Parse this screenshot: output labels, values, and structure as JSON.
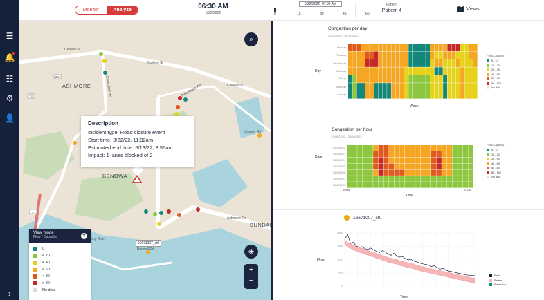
{
  "topbar": {
    "mode_monitor": "Monitor",
    "mode_analyze": "Analyze",
    "time": "06:30 AM",
    "date": "6/22/2022",
    "timeline_label": "6/22/2022, 07:00 AM",
    "timeline_ticks": [
      "0",
      "15",
      "30",
      "45",
      "60"
    ],
    "pattern_label": "Pattern",
    "pattern_value": "Pattern 4",
    "views_label": "Views"
  },
  "sidebar": {
    "items": [
      "list-icon",
      "bell-icon",
      "queue-icon",
      "settings-icon",
      "user-icon"
    ],
    "expand_icon": "chevron-right-icon"
  },
  "map": {
    "labels": [
      "Colbew St",
      "Colbew St",
      "Colbew St",
      "Cavendish Rd",
      "Pine Ridge Rd",
      "Sawyer Rd",
      "ASHMORE",
      "BENOWA",
      "Ashmore Rd",
      "BUNDAL",
      "Bundall Rd",
      "Nerang River"
    ],
    "route_badges": [
      "24",
      "24",
      "4"
    ],
    "popup": {
      "title": "Description",
      "lines": [
        "Incident type: Road closure event",
        "Start time: 3/22/22, 11:32am",
        "Estimated end time: 5/13/22, 8:56am",
        "Impact: 1 lanes blocked of 2"
      ]
    },
    "sensor_label": "16671007_st0",
    "legend": {
      "title": "View mode",
      "subtitle": "Flow / Capacity",
      "items": [
        {
          "label": "0",
          "color": "#12877a"
        },
        {
          "label": "< 20",
          "color": "#8dc63f"
        },
        {
          "label": "< 40",
          "color": "#e6d21d"
        },
        {
          "label": "< 60",
          "color": "#f5a623"
        },
        {
          "label": "< 80",
          "color": "#e05a1d"
        },
        {
          "label": "> 80",
          "color": "#c62828"
        },
        {
          "label": "No data",
          "color": "#dcdcdc"
        }
      ]
    }
  },
  "flow_legend": {
    "title": "Flow/Capacity",
    "items": [
      {
        "label": "0 - 10",
        "color": "#12877a"
      },
      {
        "label": "10 - 20",
        "color": "#8dc63f"
      },
      {
        "label": "20 - 40",
        "color": "#e6d21d"
      },
      {
        "label": "40 - 60",
        "color": "#f5a623"
      },
      {
        "label": "60 - 80",
        "color": "#e05a1d"
      },
      {
        "label": "80 - 100",
        "color": "#c62828"
      },
      {
        "label": "No data",
        "color": "#e3e3e3"
      }
    ]
  },
  "panels": {
    "day": {
      "title": "Congestion per day",
      "subtitle": "01/01/2022 - 01/12/2022",
      "ylabel": "Day",
      "xlabel": "Week",
      "rows": [
        "Monday",
        "Tuesday",
        "Wednesday",
        "Thursday",
        "Friday",
        "Saturday",
        "Sunday"
      ]
    },
    "hour": {
      "title": "Congestion per hour",
      "subtitle": "22/08/2022 - 28/08/2022",
      "ylabel": "Date",
      "xlabel": "Time",
      "rows": [
        "2022/08/22",
        "2022/08/23",
        "2022/08/24",
        "2022/08/25",
        "2022/08/26",
        "2022/08/27",
        "2022/08/28"
      ],
      "ticks": [
        "00:00",
        "24:00"
      ]
    },
    "sensor": {
      "title": "16671007_st0",
      "ylabel": "Flow",
      "xlabel": "Time",
      "yticks": [
        "4000",
        "3000",
        "2000",
        "1000",
        "0"
      ],
      "legend": [
        {
          "label": "Real",
          "color": "#1b2540"
        },
        {
          "label": "Pattern",
          "color": "#f4b6b6"
        },
        {
          "label": "Prediction",
          "color": "#12877a"
        }
      ]
    }
  },
  "chart_data": [
    {
      "type": "heatmap",
      "title": "Congestion per day",
      "xlabel": "Week",
      "ylabel": "Day",
      "rows": [
        "Monday",
        "Tuesday",
        "Wednesday",
        "Thursday",
        "Friday",
        "Saturday",
        "Sunday"
      ],
      "columns": 30,
      "scale": [
        "#12877a",
        "#8dc63f",
        "#e6d21d",
        "#f5a623",
        "#e05a1d",
        "#c62828",
        "#e3e3e3"
      ],
      "values": [
        [
          4,
          4,
          4,
          3,
          3,
          3,
          3,
          3,
          3,
          3,
          3,
          3,
          3,
          3,
          0,
          0,
          0,
          0,
          0,
          3,
          3,
          3,
          3,
          5,
          5,
          5,
          2,
          2,
          3,
          3
        ],
        [
          3,
          3,
          3,
          3,
          4,
          4,
          5,
          3,
          3,
          3,
          3,
          3,
          3,
          3,
          0,
          0,
          0,
          0,
          0,
          3,
          2,
          2,
          3,
          3,
          3,
          2,
          2,
          2,
          3,
          3
        ],
        [
          3,
          3,
          3,
          3,
          5,
          5,
          5,
          3,
          3,
          3,
          3,
          3,
          3,
          3,
          0,
          0,
          0,
          0,
          0,
          2,
          3,
          3,
          2,
          2,
          2,
          3,
          2,
          2,
          2,
          3
        ],
        [
          3,
          3,
          3,
          3,
          3,
          3,
          3,
          3,
          3,
          3,
          3,
          3,
          3,
          2,
          2,
          2,
          2,
          2,
          2,
          2,
          0,
          0,
          2,
          2,
          2,
          2,
          3,
          2,
          2,
          2
        ],
        [
          0,
          1,
          3,
          3,
          3,
          3,
          3,
          3,
          3,
          3,
          3,
          3,
          3,
          2,
          1,
          1,
          1,
          1,
          1,
          2,
          2,
          2,
          0,
          2,
          2,
          2,
          3,
          2,
          2,
          2
        ],
        [
          0,
          1,
          0,
          0,
          3,
          3,
          0,
          0,
          0,
          0,
          3,
          3,
          3,
          2,
          1,
          1,
          1,
          1,
          1,
          2,
          2,
          2,
          0,
          2,
          2,
          2,
          3,
          2,
          2,
          2
        ],
        [
          0,
          1,
          0,
          0,
          3,
          3,
          0,
          0,
          0,
          0,
          3,
          3,
          3,
          2,
          1,
          1,
          1,
          1,
          1,
          2,
          2,
          2,
          0,
          2,
          2,
          2,
          3,
          2,
          2,
          2
        ]
      ]
    },
    {
      "type": "heatmap",
      "title": "Congestion per hour",
      "xlabel": "Time",
      "ylabel": "Date",
      "rows": [
        "2022/08/22",
        "2022/08/23",
        "2022/08/24",
        "2022/08/25",
        "2022/08/26",
        "2022/08/27",
        "2022/08/28"
      ],
      "columns": 24,
      "x_ticks": [
        "00:00",
        "24:00"
      ],
      "scale": [
        "#12877a",
        "#8dc63f",
        "#e6d21d",
        "#f5a623",
        "#e05a1d",
        "#c62828",
        "#e3e3e3"
      ],
      "values": [
        [
          1,
          1,
          1,
          1,
          1,
          3,
          4,
          4,
          3,
          3,
          3,
          3,
          3,
          3,
          3,
          3,
          3,
          3,
          3,
          3,
          1,
          1,
          1,
          1
        ],
        [
          1,
          1,
          1,
          1,
          1,
          4,
          4,
          4,
          3,
          3,
          3,
          3,
          3,
          3,
          3,
          3,
          4,
          4,
          3,
          3,
          1,
          1,
          1,
          1
        ],
        [
          1,
          1,
          1,
          1,
          1,
          4,
          5,
          4,
          3,
          3,
          3,
          3,
          3,
          3,
          3,
          3,
          4,
          5,
          3,
          3,
          1,
          1,
          1,
          1
        ],
        [
          1,
          1,
          1,
          1,
          1,
          4,
          5,
          4,
          4,
          3,
          3,
          3,
          3,
          3,
          3,
          3,
          4,
          5,
          3,
          3,
          1,
          1,
          1,
          1
        ],
        [
          1,
          1,
          1,
          1,
          1,
          3,
          5,
          4,
          4,
          4,
          4,
          3,
          3,
          3,
          3,
          3,
          4,
          4,
          3,
          3,
          1,
          1,
          1,
          1
        ],
        [
          1,
          1,
          1,
          1,
          1,
          1,
          1,
          1,
          1,
          1,
          1,
          1,
          1,
          1,
          1,
          1,
          1,
          1,
          1,
          1,
          1,
          1,
          1,
          1
        ],
        [
          1,
          1,
          1,
          1,
          1,
          1,
          1,
          1,
          1,
          1,
          1,
          1,
          1,
          1,
          1,
          1,
          1,
          1,
          1,
          1,
          1,
          1,
          1,
          1
        ]
      ]
    },
    {
      "type": "line",
      "title": "16671007_st0",
      "xlabel": "Time",
      "ylabel": "Flow",
      "ylim": [
        0,
        4000
      ],
      "series": [
        {
          "name": "Real",
          "values": [
            3500,
            3900,
            3200,
            3300,
            3000,
            2900,
            2950,
            2800,
            2750,
            2850,
            2700,
            2600,
            2500,
            2650,
            2550,
            2400,
            2300,
            2450,
            2250,
            2150,
            2200,
            2050,
            1950,
            2000,
            1850,
            1800,
            1700,
            1650,
            1600,
            1550,
            1450,
            1500,
            1350,
            1250,
            1300,
            1150,
            1100,
            1050,
            1000,
            950,
            900,
            850,
            800,
            780,
            760,
            750
          ]
        },
        {
          "name": "Pattern",
          "values": [
            3300,
            3100,
            3000,
            2900,
            2800,
            2700,
            2650,
            2550,
            2500,
            2400,
            2350,
            2250,
            2200,
            2100,
            2050,
            1950,
            1900,
            1850,
            1800,
            1700,
            1650,
            1600,
            1550,
            1500,
            1450,
            1350,
            1300,
            1250,
            1200,
            1150,
            1100,
            1050,
            1000,
            950,
            900,
            850,
            800,
            750,
            700,
            650,
            600,
            550,
            500,
            450,
            400,
            380
          ]
        },
        {
          "name": "Prediction",
          "values": []
        }
      ]
    }
  ]
}
